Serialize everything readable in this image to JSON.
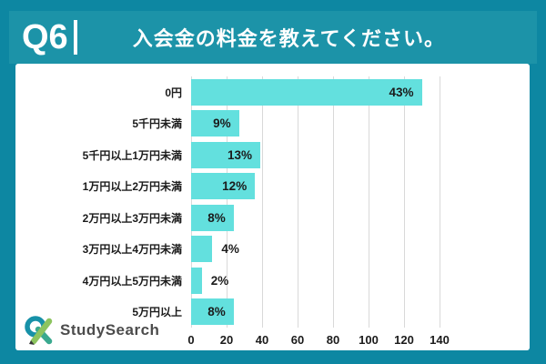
{
  "header": {
    "question_label": "Q6",
    "title": "入会金の料金を教えてください。"
  },
  "brand": {
    "name": "StudySearch"
  },
  "chart_data": {
    "type": "bar",
    "orientation": "horizontal",
    "title": "入会金の料金を教えてください。",
    "categories": [
      "0円",
      "5千円未満",
      "5千円以上1万円未満",
      "1万円以上2万円未満",
      "2万円以上3万円未満",
      "3万円以上4万円未満",
      "4万円以上5万円未満",
      "5万円以上"
    ],
    "values": [
      130,
      27,
      39,
      36,
      24,
      12,
      6,
      24
    ],
    "percent_labels": [
      "43%",
      "9%",
      "13%",
      "12%",
      "8%",
      "4%",
      "2%",
      "8%"
    ],
    "label_inside": [
      true,
      true,
      true,
      true,
      true,
      false,
      false,
      true
    ],
    "xlim": [
      0,
      140
    ],
    "xticks": [
      0,
      20,
      40,
      60,
      80,
      100,
      120,
      140
    ],
    "grid": true,
    "legend": false,
    "bar_color": "#63e0de"
  },
  "colors": {
    "background": "#0d87a2",
    "header_band": "#1c93a8",
    "panel": "#ffffff",
    "bar": "#63e0de",
    "grid_line": "#d9d9d9",
    "text": "#1b1b1b",
    "title_text": "#ffffff",
    "brand_text": "#4c4c4c"
  }
}
